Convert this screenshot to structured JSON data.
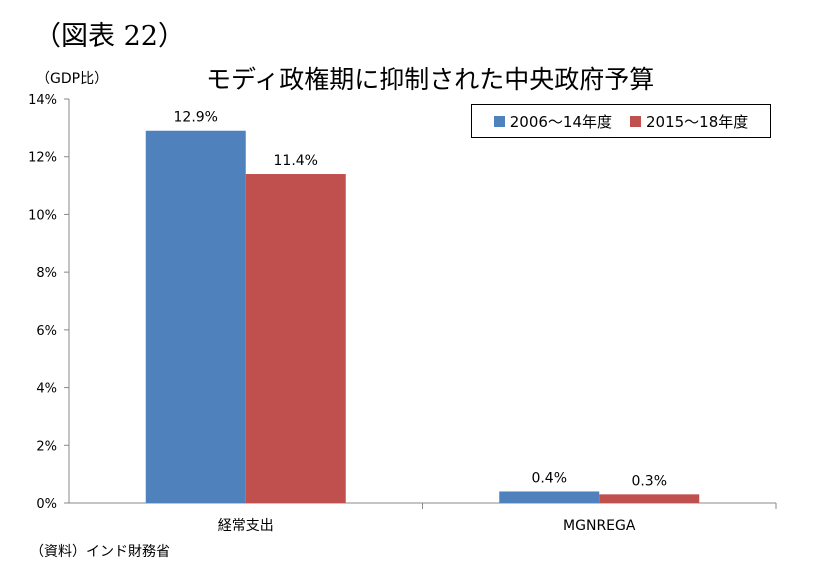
{
  "figure_label": "（図表 22）",
  "unit_label": "（GDP比）",
  "source_note": "（資料）インド財務省",
  "colors": {
    "series_0": "#4f81bd",
    "series_1": "#c0504d",
    "axis": "#888888"
  },
  "chart_data": {
    "type": "bar",
    "title": "モディ政権期に抑制された中央政府予算",
    "categories": [
      "経常支出",
      "MGNREGA"
    ],
    "series": [
      {
        "name": "2006～14年度",
        "values": [
          12.9,
          0.4
        ],
        "labels": [
          "12.9%",
          "0.4%"
        ]
      },
      {
        "name": "2015～18年度",
        "values": [
          11.4,
          0.3
        ],
        "labels": [
          "11.4%",
          "0.3%"
        ]
      }
    ],
    "ylim": [
      0,
      14
    ],
    "yticks": [
      0,
      2,
      4,
      6,
      8,
      10,
      12,
      14
    ],
    "ytick_labels": [
      "0%",
      "2%",
      "4%",
      "6%",
      "8%",
      "10%",
      "12%",
      "14%"
    ],
    "grid": false,
    "legend_position": "top-right"
  }
}
